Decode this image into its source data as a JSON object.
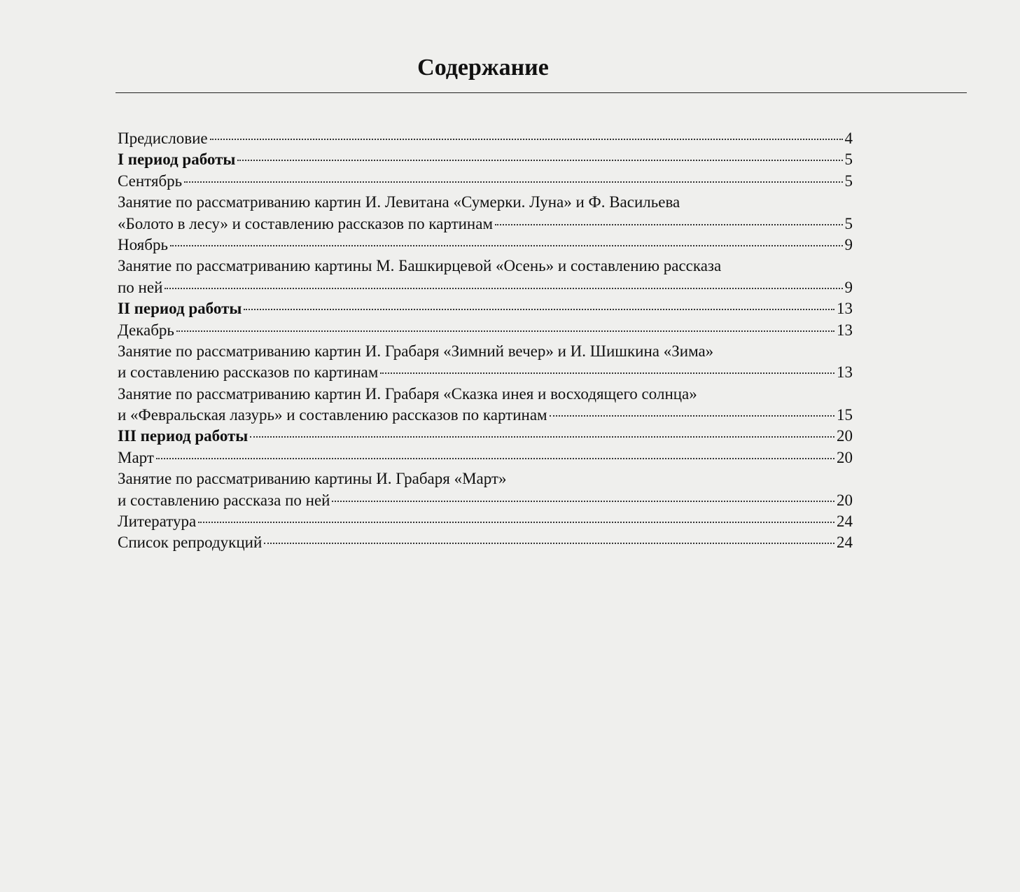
{
  "title": "Содержание",
  "entries": [
    {
      "lines": [
        "Предисловие"
      ],
      "page": 4,
      "bold": false
    },
    {
      "lines": [
        "I период работы"
      ],
      "page": 5,
      "bold": true
    },
    {
      "lines": [
        "Сентябрь"
      ],
      "page": 5,
      "bold": false
    },
    {
      "lines": [
        "Занятие по рассматриванию картин И. Левитана «Сумерки. Луна» и Ф. Васильева",
        "«Болото в лесу» и составлению рассказов по картинам"
      ],
      "page": 5,
      "bold": false
    },
    {
      "lines": [
        "Ноябрь"
      ],
      "page": 9,
      "bold": false
    },
    {
      "lines": [
        "Занятие по рассматриванию картины М. Башкирцевой «Осень» и составлению рассказа",
        "по ней"
      ],
      "page": 9,
      "bold": false
    },
    {
      "lines": [
        "II период работы"
      ],
      "page": 13,
      "bold": true
    },
    {
      "lines": [
        "Декабрь"
      ],
      "page": 13,
      "bold": false
    },
    {
      "lines": [
        "Занятие по рассматриванию картин И. Грабаря «Зимний вечер» и И. Шишкина «Зима»",
        "и составлению рассказов по картинам"
      ],
      "page": 13,
      "bold": false
    },
    {
      "lines": [
        "Занятие по рассматриванию картин И. Грабаря «Сказка инея и восходящего солнца»",
        "и «Февральская лазурь» и составлению рассказов по картинам"
      ],
      "page": 15,
      "bold": false
    },
    {
      "lines": [
        "III период работы"
      ],
      "page": 20,
      "bold": true
    },
    {
      "lines": [
        "Март"
      ],
      "page": 20,
      "bold": false
    },
    {
      "lines": [
        "Занятие по рассматриванию картины И. Грабаря «Март»",
        "и составлению рассказа по ней"
      ],
      "page": 20,
      "bold": false
    },
    {
      "lines": [
        "Литература"
      ],
      "page": 24,
      "bold": false
    },
    {
      "lines": [
        "Список репродукций"
      ],
      "page": 24,
      "bold": false
    }
  ]
}
